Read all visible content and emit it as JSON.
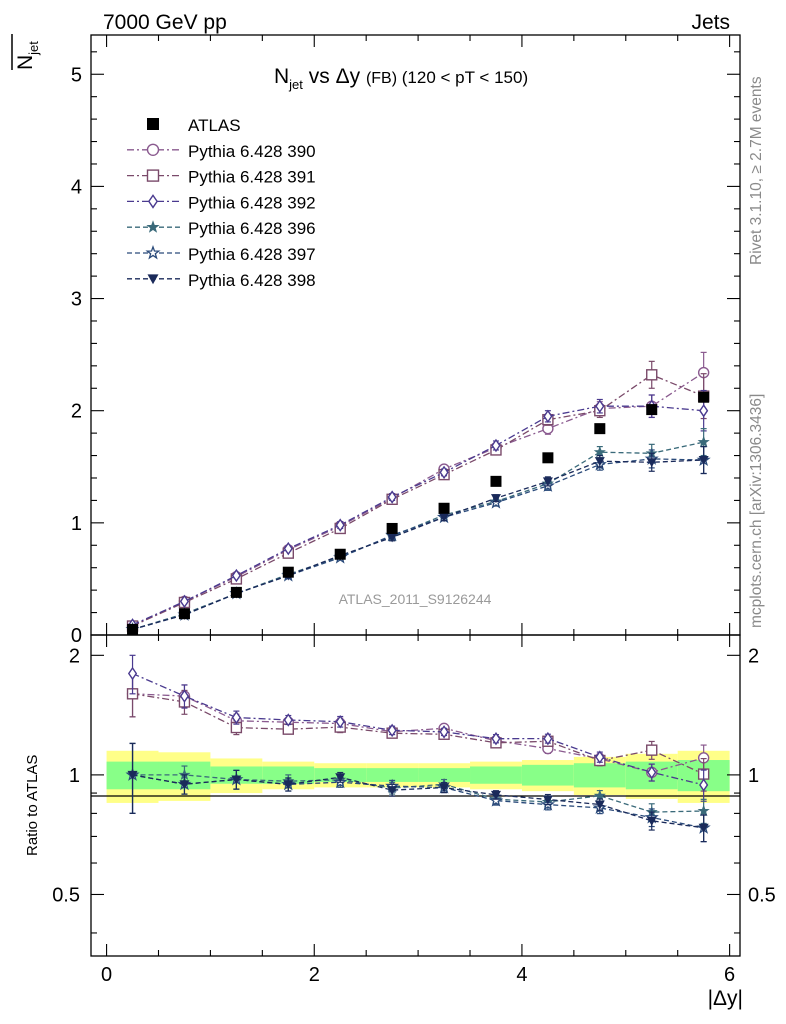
{
  "header": {
    "left": "7000 GeV pp",
    "right": "Jets"
  },
  "side_labels": {
    "rivet": "Rivet 3.1.10, ≥ 2.7M events",
    "mcplots": "mcplots.cern.ch [arXiv:1306.3436]"
  },
  "chart_data": {
    "type": "scatter",
    "title": {
      "main": "N",
      "main_sub": "jet",
      "vs": " vs Δy ",
      "fb": "(FB)",
      "range": " (120 < pT < 150)"
    },
    "ylabel": {
      "main": "N",
      "sub": "jet"
    },
    "xlabel": "|Δy|",
    "watermark": "ATLAS_2011_S9126244",
    "xlim": [
      -0.15,
      6.1
    ],
    "ylim": [
      0,
      5.35
    ],
    "ratio_ylabel": "Ratio to ATLAS",
    "ratio_ylim": [
      0.35,
      2.25
    ],
    "x_ticks": [
      "0",
      "2",
      "4",
      "6"
    ],
    "y_ticks": [
      "0",
      "1",
      "2",
      "3",
      "4",
      "5"
    ],
    "ratio_ticks": [
      "0.5",
      "1",
      "2"
    ],
    "x": [
      0.25,
      0.75,
      1.25,
      1.75,
      2.25,
      2.75,
      3.25,
      3.75,
      4.25,
      4.75,
      5.25,
      5.75
    ],
    "atlas": {
      "name": "ATLAS",
      "color": "#000000",
      "values": [
        0.05,
        0.19,
        0.38,
        0.56,
        0.72,
        0.95,
        1.13,
        1.37,
        1.58,
        1.84,
        2.01,
        2.12
      ]
    },
    "band_inner": [
      0.08,
      0.08,
      0.05,
      0.05,
      0.04,
      0.04,
      0.04,
      0.05,
      0.06,
      0.07,
      0.08,
      0.09
    ],
    "band_outer": [
      0.15,
      0.14,
      0.1,
      0.08,
      0.07,
      0.07,
      0.07,
      0.08,
      0.09,
      0.11,
      0.13,
      0.15
    ],
    "series": [
      {
        "name": "Pythia 6.428 390",
        "color": "#8a5a8f",
        "marker": "circle-open",
        "dash": "dashdot",
        "values": [
          0.08,
          0.3,
          0.52,
          0.76,
          0.97,
          1.22,
          1.48,
          1.67,
          1.84,
          2.02,
          2.04,
          2.34
        ],
        "errors": [
          0.01,
          0.02,
          0.02,
          0.02,
          0.03,
          0.03,
          0.03,
          0.04,
          0.05,
          0.06,
          0.1,
          0.18
        ]
      },
      {
        "name": "Pythia 6.428 391",
        "color": "#7a4a6a",
        "marker": "square-open",
        "dash": "dashdot",
        "values": [
          0.08,
          0.29,
          0.5,
          0.73,
          0.95,
          1.21,
          1.43,
          1.65,
          1.92,
          2.0,
          2.32,
          2.13
        ],
        "errors": [
          0.01,
          0.02,
          0.02,
          0.02,
          0.03,
          0.03,
          0.03,
          0.04,
          0.05,
          0.06,
          0.12,
          0.2
        ]
      },
      {
        "name": "Pythia 6.428 392",
        "color": "#4a3a8f",
        "marker": "diamond-open",
        "dash": "dashdot",
        "values": [
          0.09,
          0.3,
          0.53,
          0.77,
          0.98,
          1.23,
          1.45,
          1.69,
          1.95,
          2.04,
          2.04,
          2.0
        ],
        "errors": [
          0.01,
          0.02,
          0.02,
          0.02,
          0.03,
          0.03,
          0.03,
          0.04,
          0.05,
          0.06,
          0.1,
          0.18
        ]
      },
      {
        "name": "Pythia 6.428 396",
        "color": "#3a6a7a",
        "marker": "star-filled",
        "dash": "dashed",
        "values": [
          0.05,
          0.19,
          0.37,
          0.54,
          0.7,
          0.88,
          1.07,
          1.19,
          1.35,
          1.63,
          1.62,
          1.72
        ],
        "errors": [
          0.01,
          0.01,
          0.02,
          0.02,
          0.02,
          0.03,
          0.03,
          0.03,
          0.04,
          0.05,
          0.08,
          0.12
        ]
      },
      {
        "name": "Pythia 6.428 397",
        "color": "#2a4a7a",
        "marker": "star-open",
        "dash": "dashed",
        "values": [
          0.05,
          0.18,
          0.37,
          0.53,
          0.69,
          0.89,
          1.05,
          1.18,
          1.33,
          1.52,
          1.57,
          1.56
        ],
        "errors": [
          0.01,
          0.01,
          0.02,
          0.02,
          0.02,
          0.03,
          0.03,
          0.03,
          0.04,
          0.05,
          0.08,
          0.12
        ]
      },
      {
        "name": "Pythia 6.428 398",
        "color": "#1a2a5a",
        "marker": "triangle-down",
        "dash": "dashed",
        "values": [
          0.05,
          0.18,
          0.37,
          0.53,
          0.71,
          0.87,
          1.05,
          1.22,
          1.37,
          1.55,
          1.54,
          1.56
        ],
        "errors": [
          0.01,
          0.01,
          0.02,
          0.02,
          0.02,
          0.03,
          0.03,
          0.03,
          0.04,
          0.05,
          0.08,
          0.12
        ]
      }
    ]
  }
}
